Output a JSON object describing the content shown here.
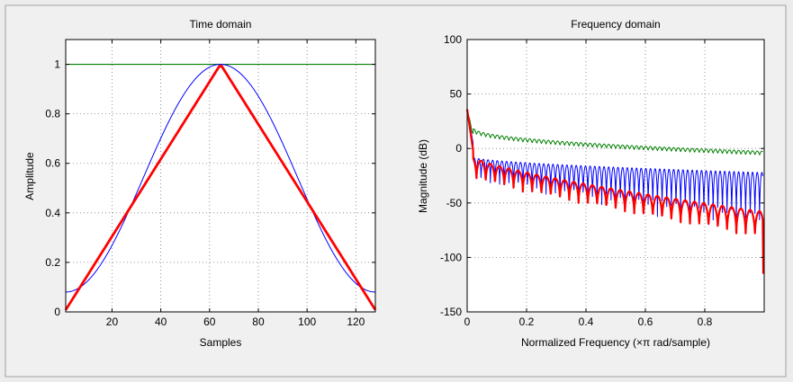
{
  "chart_data": [
    {
      "type": "line",
      "title": "Time domain",
      "xlabel": "Samples",
      "ylabel": "Amplitude",
      "xlim": [
        1,
        128
      ],
      "ylim": [
        0,
        1.1
      ],
      "xticks": [
        20,
        40,
        60,
        80,
        100,
        120
      ],
      "yticks": [
        0,
        0.2,
        0.4,
        0.6,
        0.8,
        1
      ],
      "grid": true,
      "colors": [
        "#0000ff",
        "#007f00",
        "#ff0000"
      ],
      "series": [
        {
          "shape": "hann-like",
          "peak_x": 64.5,
          "peak_y": 1,
          "edge_y": 0.08,
          "color": "#0000ff"
        },
        {
          "shape": "constant",
          "y": 1,
          "color": "#007f00"
        },
        {
          "shape": "triangular",
          "peak_x": 64.5,
          "peak_y": 1,
          "edge_y": 0.008,
          "color": "#ff0000"
        }
      ]
    },
    {
      "type": "line",
      "title": "Frequency domain",
      "xlabel": "Normalized Frequency  (×π rad/sample)",
      "ylabel": "Magnitude (dB)",
      "xlim": [
        0,
        1
      ],
      "ylim": [
        -150,
        100
      ],
      "xticks": [
        0,
        0.2,
        0.4,
        0.6,
        0.8
      ],
      "yticks": [
        -150,
        -100,
        -50,
        0,
        50,
        100
      ],
      "grid": true,
      "colors": [
        "#0000ff",
        "#007f00",
        "#ff0000"
      ],
      "series": [
        {
          "color": "#007f00",
          "start_db": 36,
          "upper_at_end_db": -2,
          "lower_at_end_db": -10
        },
        {
          "color": "#0000ff",
          "start_db": 36,
          "upper_at_end_db": -22,
          "lower_at_end_db": -80
        },
        {
          "color": "#ff0000",
          "start_db": 36,
          "upper_at_end_db": -70,
          "lower_at_end_db": -115
        }
      ]
    }
  ]
}
